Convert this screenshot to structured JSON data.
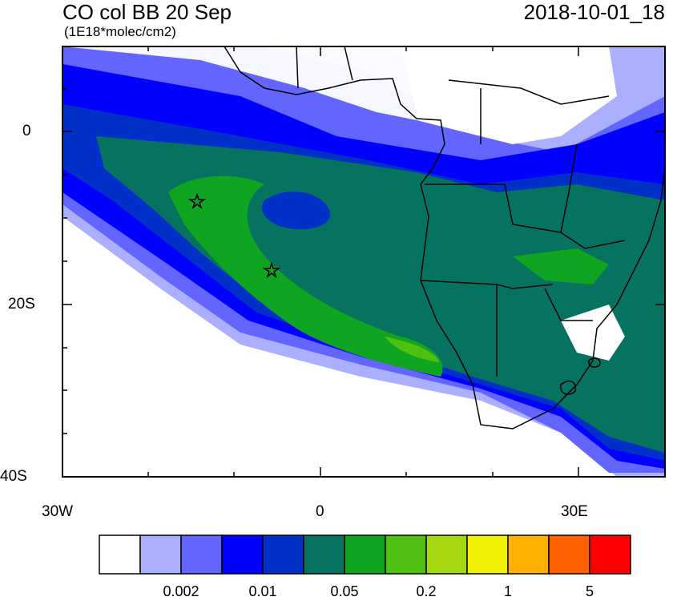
{
  "map": {
    "title": "CO col BB 20 Sep",
    "units": "(1E18*molec/cm2)",
    "datetime": "2018-10-01_18",
    "lat_labels": [
      "0",
      "20S",
      "40S"
    ],
    "lon_labels": [
      "30W",
      "0",
      "30E"
    ],
    "extent": {
      "lon_min": -30,
      "lon_max": 40,
      "lat_min": -40,
      "lat_max": 10
    },
    "markers": [
      {
        "name": "star",
        "lon": -14.5,
        "lat": -8
      },
      {
        "name": "star",
        "lon": -5.7,
        "lat": -16
      }
    ],
    "colorbar": {
      "colors": [
        "#ffffff",
        "#aab0ff",
        "#6464ff",
        "#0000ff",
        "#0030c8",
        "#05735f",
        "#10a520",
        "#50c010",
        "#a5d810",
        "#f0f000",
        "#ffb000",
        "#ff6000",
        "#ff0000"
      ],
      "labels": [
        "0.002",
        "0.01",
        "0.05",
        "0.2",
        "1",
        "5"
      ]
    }
  }
}
